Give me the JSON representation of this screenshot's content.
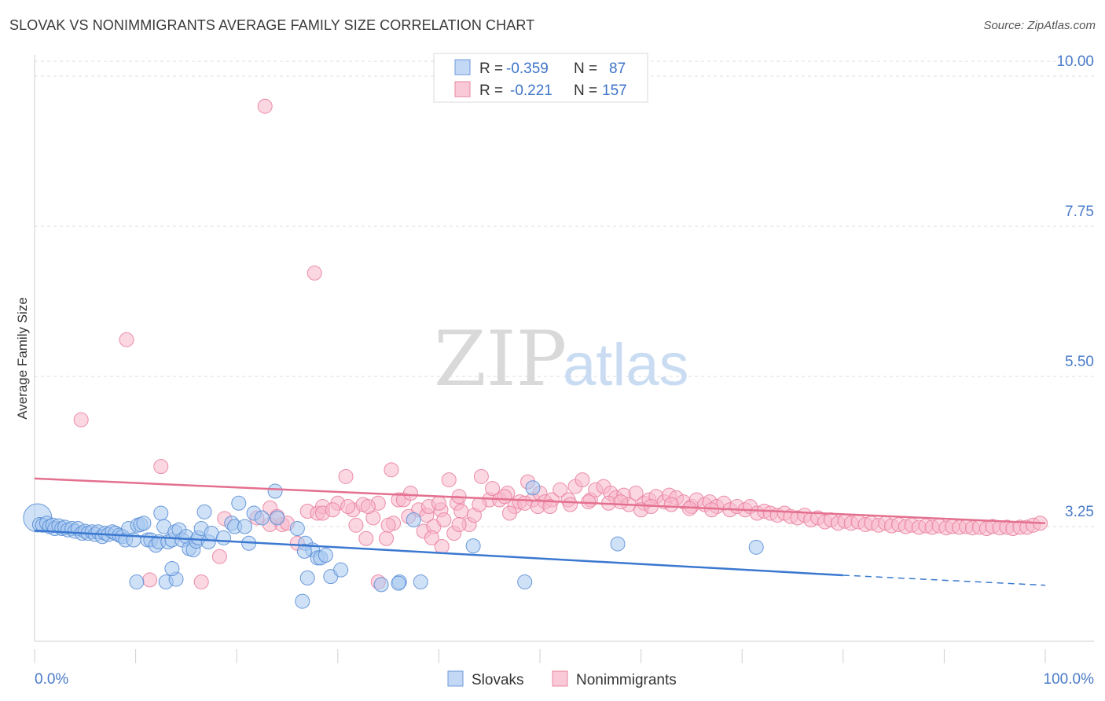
{
  "header": {
    "title": "SLOVAK VS NONIMMIGRANTS AVERAGE FAMILY SIZE CORRELATION CHART",
    "source": "Source: ZipAtlas.com"
  },
  "watermark": {
    "zip": "ZIP",
    "atlas": "atlas"
  },
  "legend_top": {
    "rows": [
      {
        "r_label": "R = ",
        "r_value": "-0.359",
        "n_label": "N = ",
        "n_value": "87"
      },
      {
        "r_label": "R = ",
        "r_value": "-0.221",
        "n_label": "N = ",
        "n_value": "157"
      }
    ]
  },
  "colors": {
    "slovaks_fill": "#a8c8f0",
    "slovaks_stroke": "#5b8fd6",
    "slovaks_line": "#3b78d0",
    "nonimm_fill": "#f7b7cb",
    "nonimm_stroke": "#e9819f",
    "nonimm_line": "#e4708f",
    "tick_text": "#4a7bc9",
    "grid": "#dcdcdc"
  },
  "chart_data": {
    "type": "scatter",
    "title": "SLOVAK VS NONIMMIGRANTS AVERAGE FAMILY SIZE CORRELATION CHART",
    "xlabel": "",
    "ylabel": "Average Family Size",
    "xlim": [
      0,
      100
    ],
    "ylim": [
      1.6,
      10.25
    ],
    "x_tick_labels": [
      "0.0%",
      "100.0%"
    ],
    "y_ticks": [
      3.25,
      5.5,
      7.75,
      10.0
    ],
    "y_tick_labels": [
      "3.25",
      "5.50",
      "7.75",
      "10.00"
    ],
    "grid": "horizontal dashed",
    "legend_placement": "top-center",
    "series": [
      {
        "name": "Slovaks",
        "r": -0.359,
        "n": 87,
        "trend": {
          "x0": 0,
          "y0": 3.19,
          "x1": 80,
          "y1": 2.52,
          "dash_to": 100,
          "dash_y": 2.37
        },
        "points": [
          [
            0.3,
            3.38
          ],
          [
            0.5,
            3.28
          ],
          [
            0.8,
            3.27
          ],
          [
            1.2,
            3.3
          ],
          [
            1.5,
            3.25
          ],
          [
            1.8,
            3.27
          ],
          [
            2.0,
            3.22
          ],
          [
            2.4,
            3.26
          ],
          [
            2.7,
            3.22
          ],
          [
            3.0,
            3.24
          ],
          [
            3.3,
            3.2
          ],
          [
            3.7,
            3.22
          ],
          [
            4.0,
            3.18
          ],
          [
            4.3,
            3.22
          ],
          [
            4.7,
            3.15
          ],
          [
            5.0,
            3.18
          ],
          [
            5.3,
            3.15
          ],
          [
            5.7,
            3.17
          ],
          [
            6.0,
            3.13
          ],
          [
            6.3,
            3.17
          ],
          [
            6.7,
            3.1
          ],
          [
            7.0,
            3.15
          ],
          [
            7.3,
            3.13
          ],
          [
            7.7,
            3.17
          ],
          [
            8.0,
            3.15
          ],
          [
            8.4,
            3.12
          ],
          [
            8.7,
            3.1
          ],
          [
            9.0,
            3.05
          ],
          [
            9.3,
            3.22
          ],
          [
            9.8,
            3.05
          ],
          [
            10.2,
            3.27
          ],
          [
            10.5,
            3.28
          ],
          [
            10.8,
            3.3
          ],
          [
            11.2,
            3.05
          ],
          [
            11.5,
            3.05
          ],
          [
            12.0,
            2.97
          ],
          [
            12.3,
            3.02
          ],
          [
            12.5,
            3.45
          ],
          [
            12.8,
            3.25
          ],
          [
            13.2,
            3.02
          ],
          [
            13.6,
            3.05
          ],
          [
            13.9,
            3.17
          ],
          [
            14.3,
            3.2
          ],
          [
            14.6,
            3.05
          ],
          [
            15.0,
            3.1
          ],
          [
            15.3,
            2.92
          ],
          [
            15.7,
            2.9
          ],
          [
            16.0,
            3.03
          ],
          [
            16.2,
            3.08
          ],
          [
            16.5,
            3.22
          ],
          [
            16.8,
            3.47
          ],
          [
            17.2,
            3.02
          ],
          [
            17.5,
            3.15
          ],
          [
            18.7,
            3.08
          ],
          [
            19.5,
            3.3
          ],
          [
            19.8,
            3.25
          ],
          [
            20.2,
            3.6
          ],
          [
            20.8,
            3.25
          ],
          [
            21.2,
            3.0
          ],
          [
            21.7,
            3.45
          ],
          [
            22.5,
            3.38
          ],
          [
            23.8,
            3.78
          ],
          [
            24.0,
            3.38
          ],
          [
            26.0,
            3.22
          ],
          [
            26.8,
            3.0
          ],
          [
            27.5,
            2.9
          ],
          [
            28.0,
            2.78
          ],
          [
            28.3,
            2.78
          ],
          [
            28.8,
            2.82
          ],
          [
            13.0,
            2.42
          ],
          [
            14.0,
            2.46
          ],
          [
            27.0,
            2.48
          ],
          [
            29.3,
            2.5
          ],
          [
            30.3,
            2.6
          ],
          [
            34.3,
            2.38
          ],
          [
            36.1,
            2.42
          ],
          [
            38.2,
            2.42
          ],
          [
            36.0,
            2.4
          ],
          [
            43.4,
            2.96
          ],
          [
            49.3,
            3.83
          ],
          [
            57.7,
            2.99
          ],
          [
            48.5,
            2.42
          ],
          [
            71.4,
            2.94
          ],
          [
            37.5,
            3.35
          ],
          [
            26.5,
            2.13
          ],
          [
            10.1,
            2.42
          ],
          [
            13.6,
            2.62
          ],
          [
            26.7,
            2.88
          ]
        ]
      },
      {
        "name": "Nonimmigrants",
        "r": -0.221,
        "n": 157,
        "trend": {
          "x0": 0,
          "y0": 3.97,
          "x1": 100,
          "y1": 3.3
        },
        "points": [
          [
            22.8,
            9.55
          ],
          [
            27.7,
            7.05
          ],
          [
            9.1,
            6.05
          ],
          [
            4.6,
            4.85
          ],
          [
            12.5,
            4.15
          ],
          [
            23.3,
            3.53
          ],
          [
            23.3,
            3.28
          ],
          [
            24.5,
            3.28
          ],
          [
            25.0,
            3.3
          ],
          [
            26.0,
            3.0
          ],
          [
            27.0,
            3.48
          ],
          [
            28.0,
            3.45
          ],
          [
            28.5,
            3.55
          ],
          [
            30.0,
            3.6
          ],
          [
            30.8,
            4.0
          ],
          [
            31.5,
            3.5
          ],
          [
            32.5,
            3.58
          ],
          [
            33.5,
            3.38
          ],
          [
            34.0,
            3.6
          ],
          [
            34.8,
            3.07
          ],
          [
            35.3,
            4.1
          ],
          [
            36.0,
            3.65
          ],
          [
            36.5,
            3.65
          ],
          [
            37.2,
            3.75
          ],
          [
            38.0,
            3.5
          ],
          [
            38.5,
            3.18
          ],
          [
            38.8,
            3.42
          ],
          [
            39.5,
            3.25
          ],
          [
            40.2,
            3.5
          ],
          [
            40.5,
            3.35
          ],
          [
            41.0,
            3.95
          ],
          [
            41.8,
            3.6
          ],
          [
            42.2,
            3.48
          ],
          [
            43.0,
            3.28
          ],
          [
            43.5,
            3.42
          ],
          [
            44.2,
            4.0
          ],
          [
            45.0,
            3.65
          ],
          [
            45.3,
            3.82
          ],
          [
            46.0,
            3.65
          ],
          [
            46.8,
            3.75
          ],
          [
            47.5,
            3.55
          ],
          [
            48.0,
            3.62
          ],
          [
            48.8,
            3.92
          ],
          [
            49.3,
            3.65
          ],
          [
            50.0,
            3.75
          ],
          [
            50.5,
            3.62
          ],
          [
            51.2,
            3.65
          ],
          [
            52.0,
            3.8
          ],
          [
            52.8,
            3.65
          ],
          [
            53.5,
            3.85
          ],
          [
            54.2,
            3.95
          ],
          [
            55.0,
            3.65
          ],
          [
            55.5,
            3.8
          ],
          [
            56.3,
            3.85
          ],
          [
            57.0,
            3.75
          ],
          [
            57.5,
            3.68
          ],
          [
            58.3,
            3.72
          ],
          [
            58.8,
            3.58
          ],
          [
            59.5,
            3.75
          ],
          [
            60.3,
            3.6
          ],
          [
            60.8,
            3.65
          ],
          [
            61.5,
            3.7
          ],
          [
            62.3,
            3.62
          ],
          [
            62.8,
            3.72
          ],
          [
            63.5,
            3.68
          ],
          [
            64.2,
            3.62
          ],
          [
            65.0,
            3.55
          ],
          [
            65.5,
            3.65
          ],
          [
            66.3,
            3.58
          ],
          [
            66.8,
            3.62
          ],
          [
            67.5,
            3.55
          ],
          [
            68.2,
            3.6
          ],
          [
            68.8,
            3.5
          ],
          [
            69.5,
            3.55
          ],
          [
            70.3,
            3.5
          ],
          [
            70.8,
            3.55
          ],
          [
            71.5,
            3.45
          ],
          [
            72.2,
            3.48
          ],
          [
            72.8,
            3.45
          ],
          [
            73.5,
            3.42
          ],
          [
            74.2,
            3.45
          ],
          [
            74.8,
            3.4
          ],
          [
            75.5,
            3.38
          ],
          [
            76.2,
            3.42
          ],
          [
            76.8,
            3.35
          ],
          [
            77.5,
            3.38
          ],
          [
            78.2,
            3.32
          ],
          [
            78.8,
            3.35
          ],
          [
            79.5,
            3.3
          ],
          [
            80.2,
            3.33
          ],
          [
            80.8,
            3.3
          ],
          [
            81.5,
            3.32
          ],
          [
            82.2,
            3.28
          ],
          [
            82.8,
            3.3
          ],
          [
            83.5,
            3.27
          ],
          [
            84.2,
            3.3
          ],
          [
            84.8,
            3.26
          ],
          [
            85.5,
            3.28
          ],
          [
            86.2,
            3.25
          ],
          [
            86.8,
            3.27
          ],
          [
            87.5,
            3.24
          ],
          [
            88.2,
            3.26
          ],
          [
            88.8,
            3.24
          ],
          [
            89.5,
            3.26
          ],
          [
            90.2,
            3.23
          ],
          [
            90.8,
            3.25
          ],
          [
            91.5,
            3.24
          ],
          [
            92.2,
            3.25
          ],
          [
            92.8,
            3.23
          ],
          [
            93.5,
            3.24
          ],
          [
            94.2,
            3.22
          ],
          [
            94.8,
            3.25
          ],
          [
            95.5,
            3.23
          ],
          [
            96.2,
            3.24
          ],
          [
            96.8,
            3.22
          ],
          [
            97.5,
            3.24
          ],
          [
            98.2,
            3.24
          ],
          [
            98.8,
            3.27
          ],
          [
            99.5,
            3.3
          ],
          [
            18.3,
            2.8
          ],
          [
            18.8,
            3.37
          ],
          [
            22.0,
            3.38
          ],
          [
            24.0,
            3.4
          ],
          [
            28.5,
            3.45
          ],
          [
            29.5,
            3.5
          ],
          [
            31.0,
            3.55
          ],
          [
            33.0,
            3.55
          ],
          [
            35.5,
            3.3
          ],
          [
            37.0,
            3.4
          ],
          [
            39.0,
            3.55
          ],
          [
            40.0,
            3.6
          ],
          [
            42.0,
            3.7
          ],
          [
            44.0,
            3.58
          ],
          [
            46.5,
            3.7
          ],
          [
            47.0,
            3.45
          ],
          [
            48.5,
            3.6
          ],
          [
            49.8,
            3.55
          ],
          [
            51.0,
            3.55
          ],
          [
            53.0,
            3.58
          ],
          [
            54.8,
            3.62
          ],
          [
            56.8,
            3.6
          ],
          [
            58.0,
            3.62
          ],
          [
            60.0,
            3.5
          ],
          [
            61.0,
            3.55
          ],
          [
            63.0,
            3.58
          ],
          [
            64.8,
            3.52
          ],
          [
            67.0,
            3.5
          ],
          [
            11.4,
            2.45
          ],
          [
            16.5,
            2.42
          ],
          [
            34.0,
            2.42
          ],
          [
            32.8,
            3.07
          ],
          [
            39.3,
            3.08
          ],
          [
            40.3,
            2.95
          ],
          [
            41.5,
            3.15
          ],
          [
            42.0,
            3.28
          ],
          [
            31.8,
            3.27
          ],
          [
            35.0,
            3.27
          ]
        ]
      }
    ]
  },
  "bottom_legend": {
    "items": [
      "Slovaks",
      "Nonimmigrants"
    ]
  }
}
